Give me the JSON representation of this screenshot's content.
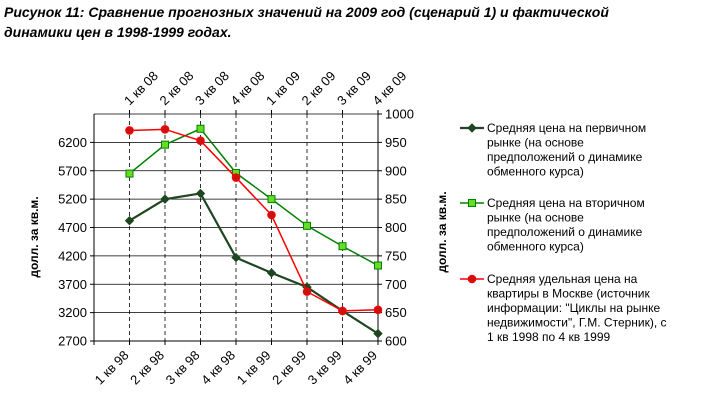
{
  "figure": {
    "title_line1": "Рисунок 11: Сравнение прогнозных значений на 2009 год (сценарий 1) и фактической",
    "title_line2": "динамики цен в 1998-1999 годах."
  },
  "chart_data": {
    "type": "line",
    "x_bottom": [
      "1 кв 98",
      "2 кв 98",
      "3 кв 98",
      "4 кв 98",
      "1 кв 99",
      "2 кв 99",
      "3 кв 99",
      "4 кв 99"
    ],
    "x_top": [
      "1 кв 08",
      "2 кв 08",
      "3 кв 08",
      "4 кв 08",
      "1 кв 09",
      "2 кв 09",
      "3 кв 09",
      "4 кв 09"
    ],
    "ylabel_left": "долл. за кв.м.",
    "ylabel_right": "долл. за кв.м.",
    "ylim_left": [
      2700,
      6700
    ],
    "yticks_left": [
      2700,
      3200,
      3700,
      4200,
      4700,
      5200,
      5700,
      6200
    ],
    "ylim_right": [
      600,
      1000
    ],
    "yticks_right": [
      600,
      650,
      700,
      750,
      800,
      850,
      900,
      950,
      1000
    ],
    "grid": "horizontal solid, vertical dashed",
    "legend_position": "right",
    "series": [
      {
        "name": "Средняя цена на первичном рынке (на основе предположений о динамике обменного курса)",
        "legend_lines": [
          "Средняя цена на первичном",
          "рынке (на основе",
          "предположений о динамике",
          "обменного курса)"
        ],
        "axis": "left",
        "color": "#1e4620",
        "marker": "diamond",
        "values": [
          4820,
          5200,
          5300,
          4170,
          3900,
          3650,
          3230,
          2830
        ]
      },
      {
        "name": "Средняя цена на вторичном рынке (на основе предположений о динамике обменного курса)",
        "legend_lines": [
          "Средняя цена на вторичном",
          "рынке (на основе",
          "предположений о динамике",
          "обменного курса)"
        ],
        "axis": "left",
        "color": "#008000",
        "marker_fill": "#66dd22",
        "marker": "square",
        "values": [
          5650,
          6160,
          6440,
          5660,
          5200,
          4730,
          4370,
          4030
        ]
      },
      {
        "name": "Средняя удельная цена на квартиры в Москве (источник информации: \"Циклы на рынке недвижимости\", Г.М. Стерник), с 1 кв 1998 по 4 кв 1999",
        "legend_lines": [
          "Средняя удельная цена на",
          "квартиры в Москве (источник",
          "информации: \"Циклы на рынке",
          "недвижимости\", Г.М. Стерник), с",
          "1 кв 1998 по 4 кв 1999"
        ],
        "axis": "right",
        "color": "#ff0000",
        "marker_fill": "#cc1111",
        "marker": "circle",
        "values": [
          971,
          973,
          953,
          888,
          822,
          687,
          653,
          655
        ]
      }
    ]
  }
}
